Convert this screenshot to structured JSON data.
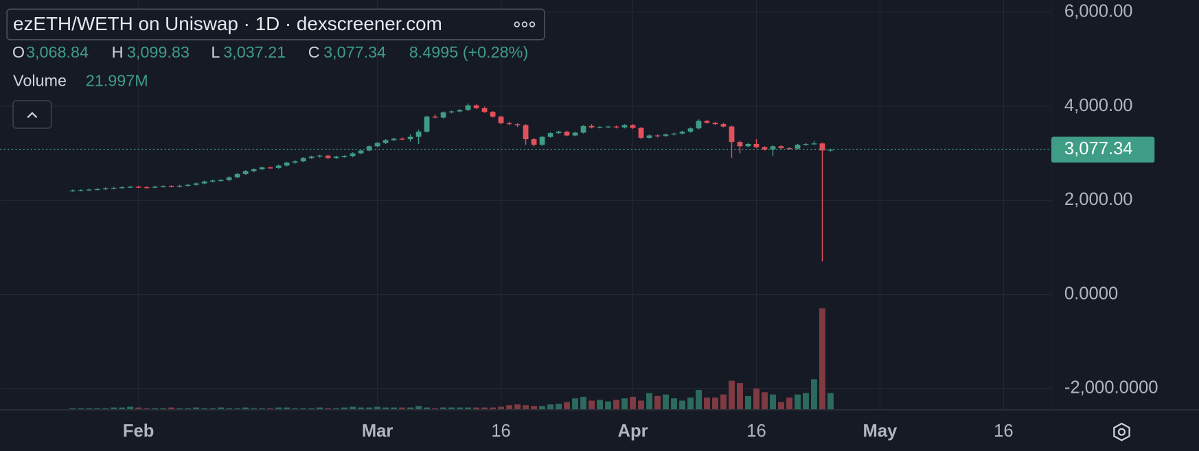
{
  "chart_data": {
    "type": "candlestick",
    "title": "ezETH/WETH on Uniswap · 1D · dexscreener.com",
    "readout": {
      "open_label": "O",
      "open": "3,068.84",
      "high_label": "H",
      "high": "3,099.83",
      "low_label": "L",
      "low": "3,037.21",
      "close_label": "C",
      "close": "3,077.34",
      "change": "8.4995 (+0.28%)",
      "volume_label": "Volume",
      "volume": "21.997M"
    },
    "last_price": {
      "value": 3077.34,
      "label": "3,077.34"
    },
    "x": [
      24,
      25,
      26,
      27,
      28,
      29,
      30,
      31,
      32,
      33,
      34,
      35,
      36,
      37,
      38,
      39,
      40,
      41,
      42,
      43,
      44,
      45,
      46,
      47,
      48,
      49,
      50,
      51,
      52,
      53,
      54,
      55,
      56,
      57,
      58,
      59,
      60,
      61,
      62,
      63,
      64,
      65,
      66,
      67,
      68,
      69,
      70,
      71,
      72,
      73,
      74,
      75,
      76,
      77,
      78,
      79,
      80,
      81,
      82,
      83,
      84,
      85,
      86,
      87,
      88,
      89,
      90,
      91,
      92,
      93,
      94,
      95,
      96,
      97,
      98,
      99,
      100,
      101,
      102,
      103,
      104,
      105,
      106,
      107,
      108,
      109,
      110,
      111,
      112,
      113,
      114,
      115,
      116
    ],
    "open": [
      2205,
      2210,
      2215,
      2230,
      2240,
      2255,
      2265,
      2280,
      2290,
      2280,
      2275,
      2290,
      2300,
      2295,
      2310,
      2330,
      2360,
      2400,
      2420,
      2430,
      2490,
      2560,
      2620,
      2660,
      2700,
      2690,
      2740,
      2800,
      2830,
      2900,
      2930,
      2950,
      2900,
      2930,
      2940,
      3000,
      3060,
      3150,
      3220,
      3280,
      3310,
      3300,
      3350,
      3460,
      3780,
      3760,
      3870,
      3890,
      3920,
      4020,
      3960,
      3880,
      3780,
      3640,
      3620,
      3600,
      3300,
      3180,
      3350,
      3430,
      3460,
      3380,
      3440,
      3580,
      3550,
      3560,
      3570,
      3550,
      3600,
      3540,
      3330,
      3380,
      3370,
      3400,
      3420,
      3460,
      3530,
      3690,
      3650,
      3620,
      3570,
      3240,
      3150,
      3200,
      3130,
      3080,
      3150,
      3110,
      3100,
      3180,
      3200,
      3210,
      3068.84
    ],
    "high": [
      2230,
      2235,
      2250,
      2260,
      2275,
      2285,
      2300,
      2310,
      2310,
      2300,
      2310,
      2320,
      2320,
      2330,
      2350,
      2380,
      2420,
      2440,
      2450,
      2510,
      2580,
      2640,
      2680,
      2720,
      2720,
      2760,
      2820,
      2850,
      2920,
      2950,
      2970,
      2970,
      2950,
      2960,
      3020,
      3080,
      3170,
      3240,
      3300,
      3330,
      3340,
      3400,
      3500,
      3800,
      3830,
      3890,
      3910,
      3940,
      4060,
      4040,
      3990,
      3900,
      3800,
      3670,
      3640,
      3620,
      3330,
      3370,
      3450,
      3480,
      3480,
      3460,
      3600,
      3620,
      3580,
      3590,
      3590,
      3620,
      3620,
      3560,
      3400,
      3400,
      3420,
      3440,
      3480,
      3550,
      3720,
      3710,
      3670,
      3650,
      3590,
      3270,
      3220,
      3300,
      3150,
      3170,
      3170,
      3130,
      3200,
      3220,
      3260,
      3230,
      3099.83
    ],
    "low": [
      2185,
      2190,
      2195,
      2210,
      2220,
      2235,
      2245,
      2260,
      2260,
      2255,
      2255,
      2270,
      2275,
      2275,
      2290,
      2310,
      2340,
      2380,
      2400,
      2410,
      2470,
      2540,
      2600,
      2640,
      2670,
      2670,
      2720,
      2780,
      2810,
      2880,
      2910,
      2880,
      2880,
      2910,
      2920,
      2980,
      3040,
      3130,
      3200,
      3260,
      3280,
      3250,
      3200,
      3440,
      3740,
      3740,
      3850,
      3870,
      3900,
      3940,
      3860,
      3760,
      3620,
      3600,
      3560,
      3180,
      3150,
      3160,
      3330,
      3410,
      3360,
      3360,
      3420,
      3530,
      3530,
      3540,
      3530,
      3530,
      3520,
      3300,
      3310,
      3340,
      3350,
      3380,
      3400,
      3440,
      3510,
      3630,
      3600,
      3550,
      2900,
      3000,
      3130,
      3110,
      3060,
      2950,
      3090,
      3080,
      3080,
      3160,
      3180,
      700,
      3037.21
    ],
    "close": [
      2210,
      2215,
      2230,
      2240,
      2255,
      2265,
      2280,
      2290,
      2280,
      2275,
      2290,
      2300,
      2295,
      2310,
      2330,
      2360,
      2400,
      2420,
      2430,
      2490,
      2560,
      2620,
      2660,
      2700,
      2690,
      2740,
      2800,
      2830,
      2900,
      2930,
      2950,
      2900,
      2930,
      2940,
      3000,
      3060,
      3150,
      3220,
      3280,
      3310,
      3300,
      3350,
      3460,
      3780,
      3760,
      3870,
      3890,
      3920,
      4020,
      3960,
      3880,
      3780,
      3640,
      3620,
      3600,
      3300,
      3180,
      3350,
      3430,
      3460,
      3380,
      3440,
      3580,
      3550,
      3560,
      3570,
      3550,
      3600,
      3540,
      3330,
      3380,
      3370,
      3400,
      3420,
      3460,
      3530,
      3690,
      3650,
      3620,
      3570,
      3240,
      3150,
      3200,
      3130,
      3080,
      3150,
      3110,
      3100,
      3180,
      3200,
      3210,
      3060,
      3077.34
    ],
    "volume": [
      2,
      2,
      2,
      2,
      2,
      3,
      3,
      4,
      3,
      2,
      2,
      2,
      3,
      2,
      2,
      3,
      2,
      2,
      3,
      2,
      2,
      3,
      2,
      2,
      2,
      3,
      3,
      2,
      2,
      2,
      3,
      2,
      2,
      3,
      4,
      3,
      3,
      4,
      3,
      3,
      3,
      3,
      5,
      3,
      2,
      3,
      3,
      3,
      3,
      3,
      3,
      3,
      4,
      6,
      7,
      6,
      5,
      5,
      7,
      8,
      10,
      15,
      17,
      12,
      13,
      11,
      13,
      15,
      17,
      12,
      22,
      18,
      20,
      15,
      12,
      16,
      26,
      16,
      16,
      20,
      38,
      35,
      18,
      28,
      23,
      20,
      10,
      16,
      20,
      22,
      40,
      133,
      21.997
    ],
    "up_color": "#3f9c85",
    "down_color": "#e2515b",
    "volume_up_color": "#2c6a5d",
    "volume_down_color": "#803a42",
    "xlim": [
      15.2,
      142.8
    ],
    "xticks": [
      {
        "value": 32,
        "label": "Feb"
      },
      {
        "value": 61,
        "label": "Mar"
      },
      {
        "value": 76,
        "label": "16"
      },
      {
        "value": 92,
        "label": "Apr"
      },
      {
        "value": 107,
        "label": "16"
      },
      {
        "value": 122,
        "label": "May"
      },
      {
        "value": 137,
        "label": "16"
      }
    ],
    "ylim": [
      -2454,
      6260
    ],
    "yticks": [
      {
        "value": 6000,
        "label": "6,000.00"
      },
      {
        "value": 4000,
        "label": "4,000.00"
      },
      {
        "value": 2000,
        "label": "2,000.00"
      },
      {
        "value": 0,
        "label": "0.0000"
      },
      {
        "value": -2000,
        "label": "-2,000.0000"
      }
    ],
    "volume_ylim": [
      0,
      537
    ],
    "grid": true
  }
}
